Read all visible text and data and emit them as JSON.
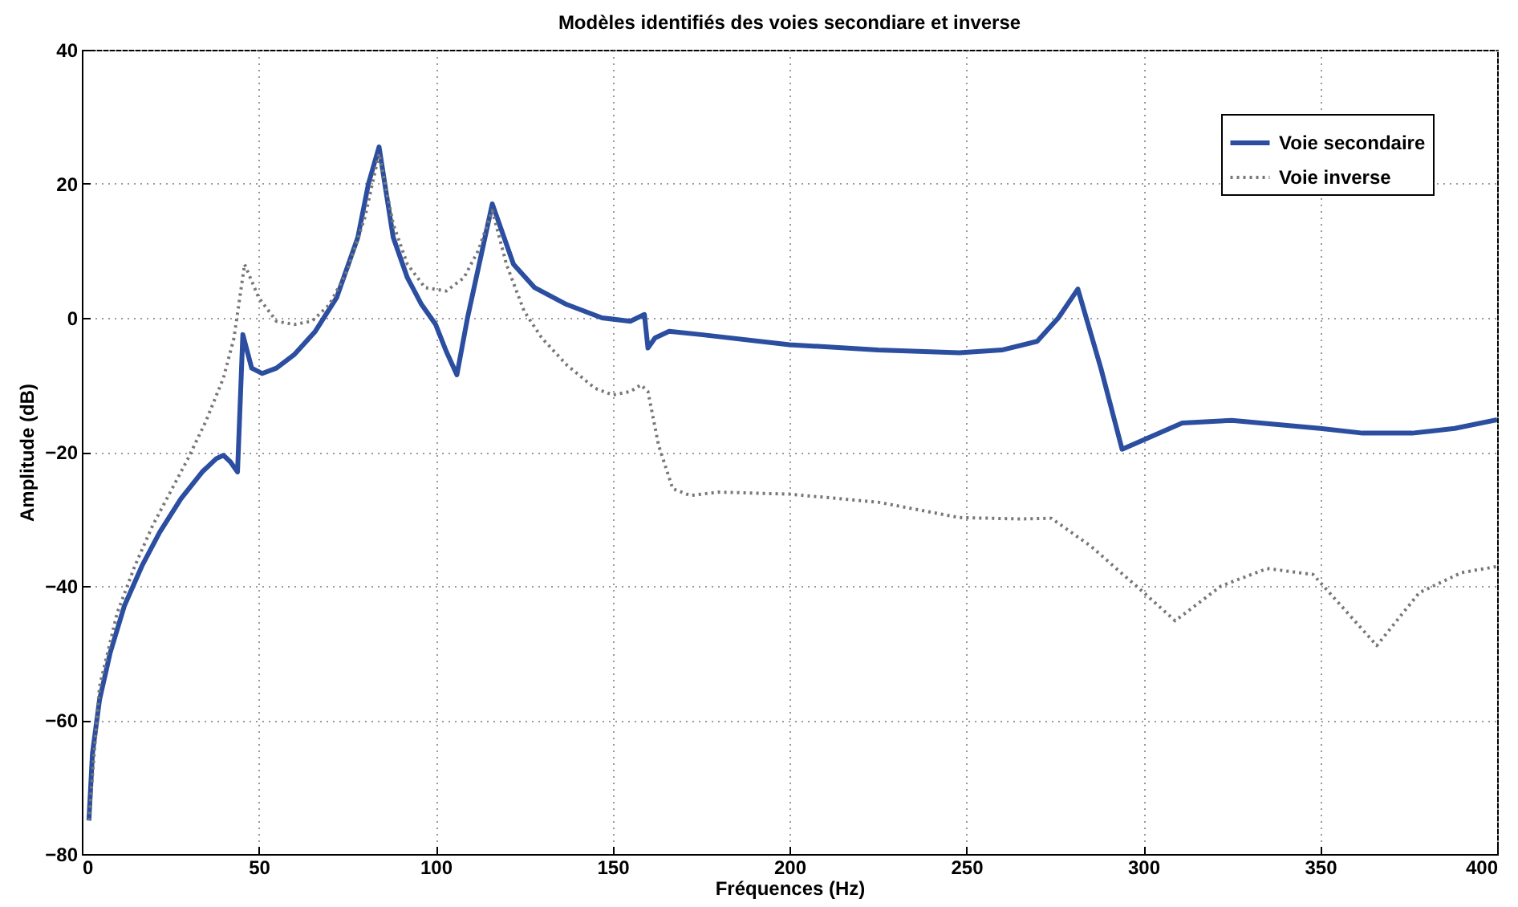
{
  "chart_data": {
    "type": "line",
    "title": "Modèles identifiés des voies secondiare et inverse",
    "xlabel": "Fréquences (Hz)",
    "ylabel": "Amplitude (dB)",
    "xlim": [
      0,
      400
    ],
    "ylim": [
      -80,
      40
    ],
    "xticks": [
      0,
      50,
      100,
      150,
      200,
      250,
      300,
      350,
      400
    ],
    "yticks": [
      -80,
      -60,
      -40,
      -20,
      0,
      20,
      40
    ],
    "grid": true,
    "legend": "top right",
    "series": [
      {
        "name": "Voie secondaire",
        "color": "#2b4ea0",
        "line_style": "solid",
        "x": [
          2,
          3,
          5,
          8,
          12,
          17,
          22,
          28,
          34,
          38,
          40,
          42,
          44,
          45.5,
          48,
          51,
          55,
          60,
          66,
          72,
          78,
          81,
          84,
          88,
          92,
          96,
          100,
          103,
          106,
          109,
          116,
          122,
          128,
          137,
          147,
          155,
          159,
          160,
          162,
          166,
          175,
          200,
          225,
          248,
          260,
          270,
          276,
          281.5,
          288,
          294,
          311,
          325,
          350,
          362,
          376,
          388,
          400
        ],
        "values": [
          -75,
          -65,
          -57,
          -50,
          -43,
          -37,
          -32,
          -27,
          -23,
          -21,
          -20.5,
          -21.5,
          -23,
          -2.5,
          -7.5,
          -8.3,
          -7.5,
          -5.5,
          -2,
          3,
          12,
          20,
          25.5,
          12,
          6,
          2,
          -1,
          -5,
          -8.5,
          0,
          17,
          8,
          4.5,
          2,
          0,
          -0.5,
          0.5,
          -4.5,
          -3,
          -2,
          -2.5,
          -4,
          -4.8,
          -5.2,
          -4.8,
          -3.5,
          0,
          4.3,
          -7.5,
          -19.6,
          -15.7,
          -15.3,
          -16.5,
          -17.2,
          -17.2,
          -16.5,
          -15.2
        ]
      },
      {
        "name": "Voie inverse",
        "color": "#777777",
        "line_style": "dotted",
        "x": [
          2,
          5,
          10,
          15,
          20,
          25,
          30,
          35,
          40,
          43,
          46,
          50,
          55,
          60,
          65,
          70,
          75,
          80,
          84,
          88,
          92,
          97,
          103,
          108,
          112,
          116,
          120,
          125,
          130,
          137,
          145,
          150,
          155,
          158,
          160,
          163,
          167,
          172,
          180,
          200,
          225,
          248,
          265,
          274,
          285,
          298,
          309,
          322,
          335,
          348,
          366,
          378,
          390,
          400
        ],
        "values": [
          -75,
          -55,
          -44,
          -37,
          -31,
          -26,
          -21,
          -15.5,
          -9,
          -3,
          8,
          3,
          -0.5,
          -1,
          -0.5,
          2,
          7,
          15,
          24.5,
          14,
          8,
          4.5,
          4,
          6,
          10,
          16,
          8,
          1,
          -3,
          -7,
          -10.5,
          -11.5,
          -11,
          -10,
          -11,
          -19,
          -25.5,
          -26.5,
          -26,
          -26.3,
          -27.5,
          -29.8,
          -30,
          -29.9,
          -34,
          -40,
          -45.2,
          -40,
          -37.4,
          -38.3,
          -48.9,
          -41,
          -38,
          -37.1
        ]
      }
    ]
  }
}
